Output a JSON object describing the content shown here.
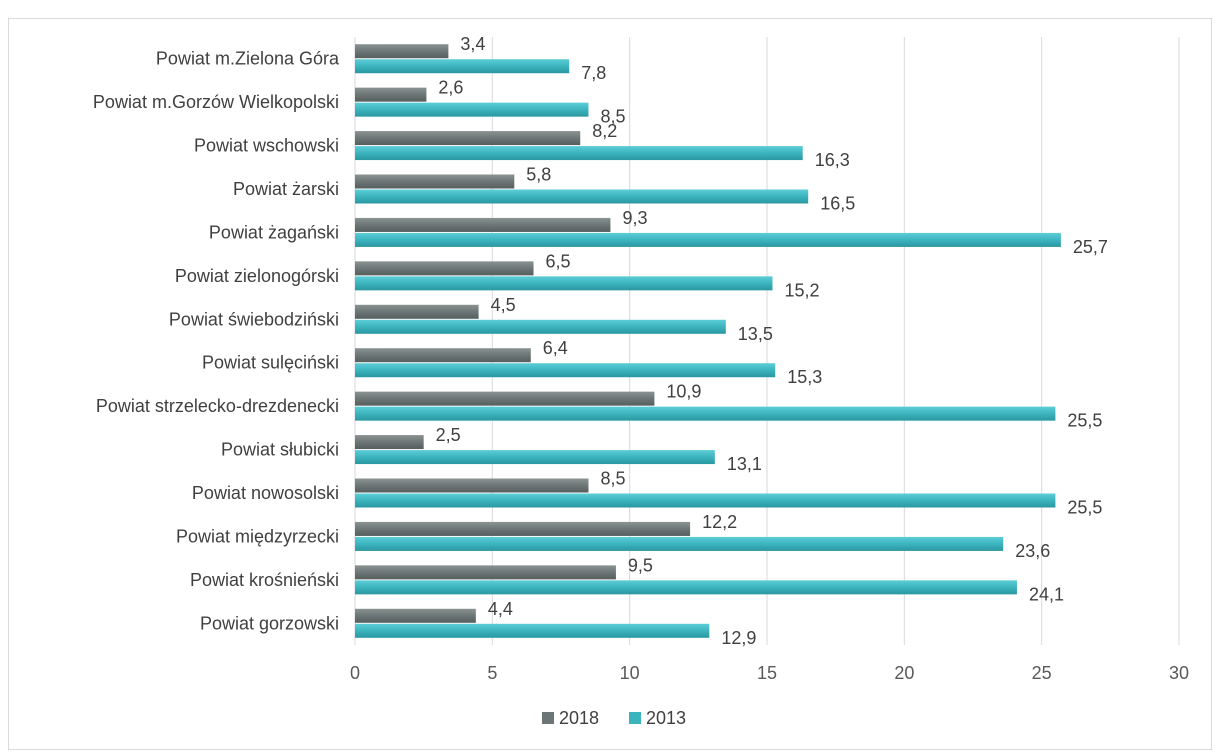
{
  "caption_fragment": "",
  "chart_data": {
    "type": "bar",
    "orientation": "horizontal",
    "categories": [
      "Powiat m.Zielona Góra",
      "Powiat m.Gorzów Wielkopolski",
      "Powiat wschowski",
      "Powiat żarski",
      "Powiat żagański",
      "Powiat zielonogórski",
      "Powiat świebodziński",
      "Powiat sulęciński",
      "Powiat strzelecko-drezdenecki",
      "Powiat słubicki",
      "Powiat nowosolski",
      "Powiat międzyrzecki",
      "Powiat krośnieński",
      "Powiat gorzowski"
    ],
    "series": [
      {
        "name": "2018",
        "color": "#6d7676",
        "values": [
          3.4,
          2.6,
          8.2,
          5.8,
          9.3,
          6.5,
          4.5,
          6.4,
          10.9,
          2.5,
          8.5,
          12.2,
          9.5,
          4.4
        ],
        "labels": [
          "3,4",
          "2,6",
          "8,2",
          "5,8",
          "9,3",
          "6,5",
          "4,5",
          "6,4",
          "10,9",
          "2,5",
          "8,5",
          "12,2",
          "9,5",
          "4,4"
        ]
      },
      {
        "name": "2013",
        "color": "#3cb4be",
        "values": [
          7.8,
          8.5,
          16.3,
          16.5,
          25.7,
          15.2,
          13.5,
          15.3,
          25.5,
          13.1,
          25.5,
          23.6,
          24.1,
          12.9
        ],
        "labels": [
          "7,8",
          "8,5",
          "16,3",
          "16,5",
          "25,7",
          "15,2",
          "13,5",
          "15,3",
          "25,5",
          "13,1",
          "25,5",
          "23,6",
          "24,1",
          "12,9"
        ]
      }
    ],
    "xlim": [
      0,
      30
    ],
    "xticks": [
      "0",
      "5",
      "10",
      "15",
      "20",
      "25",
      "30"
    ],
    "grid": "vertical",
    "legend_position": "bottom"
  }
}
